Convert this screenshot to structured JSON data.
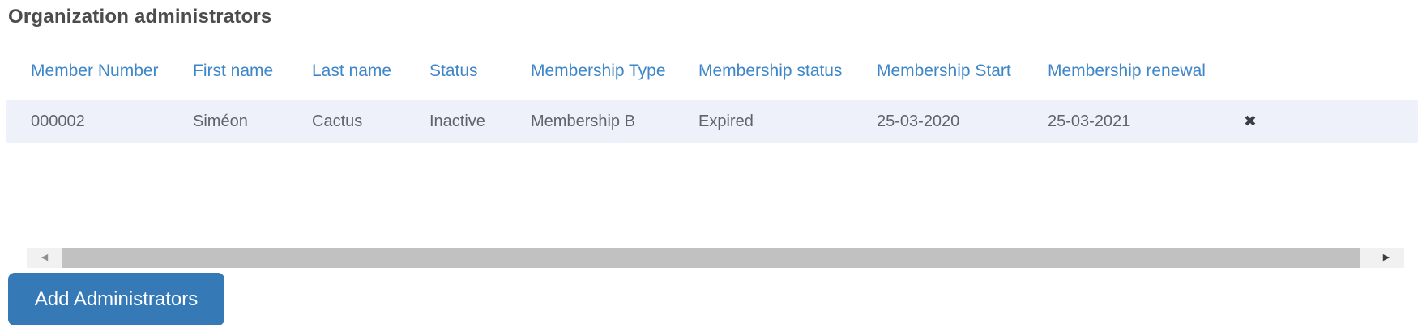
{
  "page": {
    "title": "Organization administrators"
  },
  "table": {
    "columns": [
      {
        "label": "Member Number"
      },
      {
        "label": "First name"
      },
      {
        "label": "Last name"
      },
      {
        "label": "Status"
      },
      {
        "label": "Membership Type"
      },
      {
        "label": "Membership status"
      },
      {
        "label": "Membership Start"
      },
      {
        "label": "Membership renewal"
      }
    ],
    "rows": [
      {
        "member_number": "000002",
        "first_name": "Siméon",
        "last_name": "Cactus",
        "status": "Inactive",
        "membership_type": "Membership B",
        "membership_status": "Expired",
        "membership_start": "25-03-2020",
        "membership_renewal": "25-03-2021"
      }
    ]
  },
  "icons": {
    "remove": "✖",
    "scroll_left": "◀",
    "scroll_right": "▶"
  },
  "actions": {
    "add_button_label": "Add Administrators"
  },
  "colors": {
    "accent_blue": "#3e86c7",
    "button_blue": "#3579b7",
    "row_bg": "#eef1fa",
    "title_color": "#4c4c4c",
    "cell_text": "#5f636a"
  }
}
